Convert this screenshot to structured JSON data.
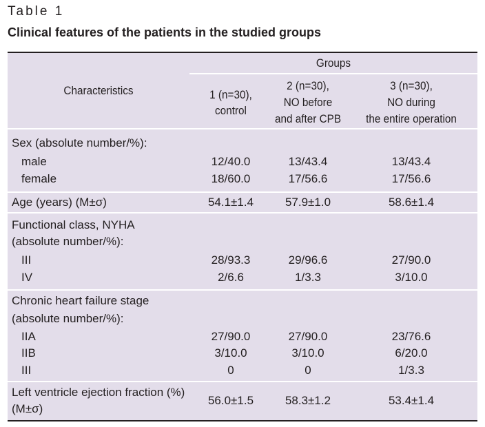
{
  "caption": {
    "label": "Table 1",
    "title": "Clinical features of the patients in the studied groups"
  },
  "header": {
    "characteristics": "Characteristics",
    "groups": "Groups",
    "col1": [
      "1 (n=30),",
      "control"
    ],
    "col2": [
      "2 (n=30),",
      "NO before",
      "and after CPB"
    ],
    "col3": [
      "3 (n=30),",
      "NO during",
      "the entire operation"
    ]
  },
  "sections": {
    "sex": {
      "label": "Sex (absolute number/%):",
      "rows": [
        {
          "label": "male",
          "g1": "12/40.0",
          "g2": "13/43.4",
          "g3": "13/43.4"
        },
        {
          "label": "female",
          "g1": "18/60.0",
          "g2": "17/56.6",
          "g3": "17/56.6"
        }
      ]
    },
    "age": {
      "label": "Age (years) (M±σ)",
      "g1": "54.1±1.4",
      "g2": "57.9±1.0",
      "g3": "58.6±1.4"
    },
    "nyha": {
      "label": [
        "Functional class, NYHA",
        "(absolute number/%):"
      ],
      "rows": [
        {
          "label": "III",
          "g1": "28/93.3",
          "g2": "29/96.6",
          "g3": "27/90.0"
        },
        {
          "label": "IV",
          "g1": "2/6.6",
          "g2": "1/3.3",
          "g3": "3/10.0"
        }
      ]
    },
    "chf": {
      "label": [
        "Chronic heart failure stage",
        "(absolute number/%):"
      ],
      "rows": [
        {
          "label": "IIA",
          "g1": "27/90.0",
          "g2": "27/90.0",
          "g3": "23/76.6"
        },
        {
          "label": "IIB",
          "g1": "3/10.0",
          "g2": "3/10.0",
          "g3": "6/20.0"
        },
        {
          "label": "III",
          "g1": "0",
          "g2": "0",
          "g3": "1/3.3"
        }
      ]
    },
    "lvef": {
      "label": [
        "Left ventricle ejection fraction (%)",
        "(M±σ)"
      ],
      "g1": "56.0±1.5",
      "g2": "58.3±1.2",
      "g3": "53.4±1.4"
    }
  }
}
